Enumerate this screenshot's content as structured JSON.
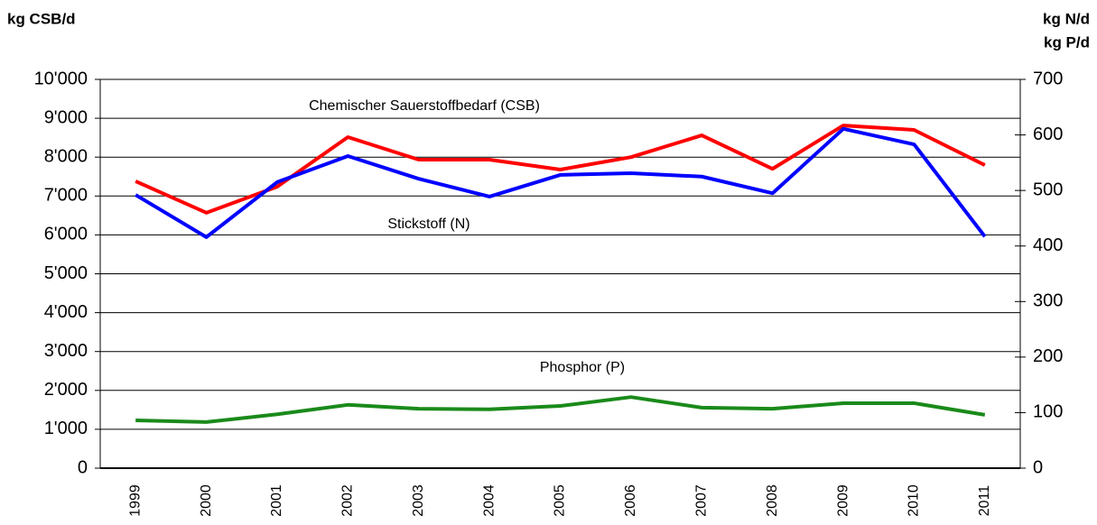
{
  "chart_data": {
    "type": "line",
    "ylabel": "kg CSB/d",
    "y2label": [
      "kg N/d",
      "kg P/d"
    ],
    "categories": [
      "1999",
      "2000",
      "2001",
      "2002",
      "2003",
      "2004",
      "2005",
      "2006",
      "2007",
      "2008",
      "2009",
      "2010",
      "2011"
    ],
    "series": [
      {
        "name": "Chemischer Sauerstoffbedarf (CSB)",
        "color": "#ff0000",
        "values": [
          7380,
          6570,
          7240,
          8515,
          7935,
          7935,
          7680,
          8000,
          8560,
          7700,
          8815,
          8700,
          7795
        ]
      },
      {
        "name": "Stickstoff (N)",
        "color": "#0000ff",
        "axis": "y2",
        "values": [
          492,
          416,
          515,
          562,
          521,
          489,
          528,
          531,
          525,
          495,
          611,
          583,
          417
        ]
      },
      {
        "name": "Phosphor (P)",
        "color": "#1a8a1a",
        "axis": "y2",
        "values": [
          86,
          83,
          97,
          114,
          107,
          106,
          112,
          128,
          109,
          107,
          117,
          117,
          96
        ]
      }
    ],
    "ylim": [
      0,
      10000
    ],
    "yticks": [
      0,
      {
        "value": 1000,
        "label": "1'000"
      },
      {
        "value": 2000,
        "label": "2'000"
      },
      {
        "value": 3000,
        "label": "3'000"
      },
      {
        "value": 4000,
        "label": "4'000"
      },
      {
        "value": 5000,
        "label": "5'000"
      },
      {
        "value": 6000,
        "label": "6'000"
      },
      {
        "value": 7000,
        "label": "7'000"
      },
      {
        "value": 8000,
        "label": "8'000"
      },
      {
        "value": 9000,
        "label": "9'000"
      },
      {
        "value": 10000,
        "label": "10'000"
      }
    ],
    "y2lim": [
      0,
      700
    ],
    "y2ticks": [
      0,
      100,
      200,
      300,
      400,
      500,
      600,
      700
    ],
    "grid": true
  }
}
